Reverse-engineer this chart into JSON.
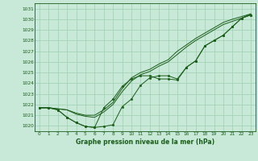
{
  "title": "Graphe pression niveau de la mer (hPa)",
  "x_hours": [
    0,
    1,
    2,
    3,
    4,
    5,
    6,
    7,
    8,
    9,
    10,
    11,
    12,
    13,
    14,
    15,
    16,
    17,
    18,
    19,
    20,
    21,
    22,
    23
  ],
  "line_dots1": [
    1021.7,
    1021.7,
    1021.5,
    1020.8,
    1020.3,
    1019.95,
    1019.85,
    1019.95,
    1020.1,
    1021.8,
    1022.5,
    1023.8,
    1024.5,
    1024.7,
    1024.7,
    1024.4,
    1025.5,
    1026.1,
    1027.5,
    1028.0,
    1028.5,
    1029.3,
    1030.1,
    1030.4
  ],
  "line_dots2": [
    1021.7,
    1021.7,
    1021.5,
    1020.8,
    1020.3,
    1019.95,
    1019.85,
    1021.7,
    1022.5,
    1023.7,
    1024.4,
    1024.7,
    1024.7,
    1024.4,
    1024.4,
    1024.3,
    1025.5,
    1026.1,
    1027.5,
    1028.0,
    1028.5,
    1029.3,
    1030.1,
    1030.4
  ],
  "line_smooth1": [
    1021.7,
    1021.7,
    1021.6,
    1021.5,
    1021.2,
    1021.0,
    1021.0,
    1021.5,
    1022.2,
    1023.5,
    1024.5,
    1025.0,
    1025.3,
    1025.8,
    1026.2,
    1027.0,
    1027.6,
    1028.2,
    1028.7,
    1029.2,
    1029.7,
    1030.0,
    1030.25,
    1030.5
  ],
  "line_smooth2": [
    1021.7,
    1021.7,
    1021.6,
    1021.5,
    1021.1,
    1020.9,
    1020.8,
    1021.3,
    1022.0,
    1023.2,
    1024.2,
    1024.8,
    1025.1,
    1025.6,
    1026.0,
    1026.7,
    1027.4,
    1028.0,
    1028.5,
    1029.0,
    1029.5,
    1029.8,
    1030.1,
    1030.5
  ],
  "ylim_min": 1019.5,
  "ylim_max": 1031.5,
  "ytick_min": 1020,
  "ytick_max": 1031,
  "bg_color": "#c8e8d8",
  "grid_color": "#9ecfb0",
  "line_color": "#1a5c1a",
  "title_color": "#1a5c1a",
  "tick_fontsize": 4.2,
  "title_fontsize": 5.5
}
